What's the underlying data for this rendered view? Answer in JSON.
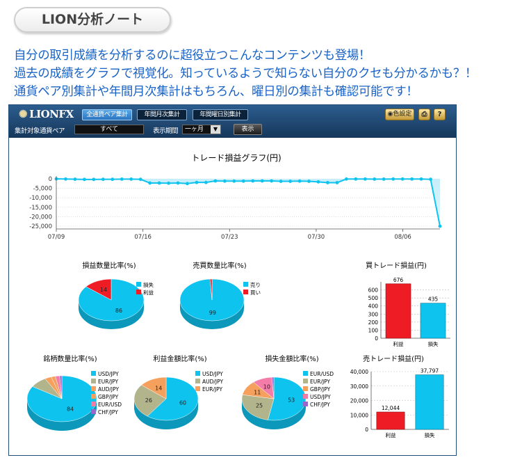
{
  "header_tab": {
    "title": "LION分析ノート"
  },
  "intro": [
    "自分の取引成績を分析するのに超役立つこんなコンテンツも登場！",
    "過去の成績をグラフで視覚化。知っているようで知らない自分のクセも分かるかも？！",
    "通貨ペア別集計や年間月次集計はもちろん、曜日別の集計も確認可能です！"
  ],
  "app": {
    "logo": "LIONFX",
    "tabs": [
      "全通貨ペア集計",
      "年間月次集計",
      "年間曜日別集計"
    ],
    "pair_label": "集計対象通貨ペア",
    "pair_value": "すべて",
    "period_label": "表示期間",
    "period_value": "一ヶ月",
    "show_button": "表示",
    "color_button": "色設定",
    "print_icon": "print-icon",
    "help_icon": "?",
    "colors": {
      "cyan": "#0fc3ef",
      "red": "#ee1c24",
      "olive": "#b2b48c",
      "orange": "#f5a05c",
      "pink": "#f47ca9",
      "purple": "#9966cc"
    }
  },
  "chart_data": [
    {
      "type": "area",
      "title": "トレード損益グラフ(円)",
      "ylim": [
        -25000,
        0
      ],
      "yticks": [
        0,
        -5000,
        -10000,
        -15000,
        -20000,
        -25000
      ],
      "ytick_labels": [
        "0",
        "-5,000",
        "-10,000",
        "-15,000",
        "-20,000",
        "-25,000"
      ],
      "xtick_labels": [
        "07/09",
        "07/16",
        "07/23",
        "07/30",
        "08/06"
      ],
      "x_day_offsets": [
        0,
        1,
        2,
        3,
        4,
        5,
        6,
        7,
        8,
        9,
        10,
        11,
        12,
        13,
        14,
        15,
        16,
        17,
        18,
        19,
        20,
        21,
        22,
        23,
        24,
        25,
        26,
        27,
        28,
        29,
        30,
        31,
        32,
        33,
        34,
        35,
        36,
        37,
        38,
        39,
        40,
        41
      ],
      "values": [
        0,
        -100,
        -200,
        -300,
        -300,
        -250,
        -250,
        -150,
        -150,
        -250,
        -2200,
        -2200,
        -2300,
        -2200,
        -2500,
        -1900,
        -1900,
        -1100,
        -1200,
        -1200,
        -1200,
        -1100,
        -1100,
        -1100,
        -1300,
        -1300,
        -1200,
        -1300,
        -1600,
        -2000,
        -2000,
        -100,
        -100,
        -100,
        -150,
        -150,
        -100,
        -100,
        -100,
        -100,
        -250,
        -25000
      ],
      "grid": true
    },
    {
      "type": "pie",
      "title": "損益数量比率(%)",
      "labels": [
        "損失",
        "利益"
      ],
      "values": [
        86,
        14
      ]
    },
    {
      "type": "pie",
      "title": "売買数量比率(%)",
      "labels": [
        "売り",
        "買い"
      ],
      "values": [
        99,
        1
      ]
    },
    {
      "type": "bar",
      "title": "買トレード損益(円)",
      "categories": [
        "利益",
        "損失"
      ],
      "values": [
        676,
        435
      ],
      "ylim": [
        0,
        700
      ],
      "yticks": [
        0,
        100,
        200,
        300,
        400,
        500,
        600
      ],
      "value_labels": [
        "676",
        "435"
      ]
    },
    {
      "type": "pie",
      "title": "銘柄数量比率(%)",
      "labels": [
        "USD/JPY",
        "EUR/JPY",
        "AUD/JPY",
        "GBP/JPY",
        "EUR/USD",
        "CHF/JPY"
      ],
      "values": [
        84,
        8,
        3,
        2,
        2,
        1
      ]
    },
    {
      "type": "pie",
      "title": "利益金額比率(%)",
      "labels": [
        "USD/JPY",
        "AUD/JPY",
        "EUR/JPY"
      ],
      "values": [
        60,
        26,
        14
      ]
    },
    {
      "type": "pie",
      "title": "損失金額比率(%)",
      "labels": [
        "EUR/USD",
        "EUR/JPY",
        "GBP/JPY",
        "USD/JPY",
        "CHF/JPY"
      ],
      "values": [
        53,
        25,
        11,
        10,
        1
      ]
    },
    {
      "type": "bar",
      "title": "売トレード損益(円)",
      "categories": [
        "利益",
        "損失"
      ],
      "values": [
        12044,
        37797
      ],
      "ylim": [
        0,
        40000
      ],
      "yticks": [
        0,
        10000,
        20000,
        30000,
        40000
      ],
      "ytick_labels": [
        "0",
        "10,000",
        "20,000",
        "30,000",
        "40,000"
      ],
      "value_labels": [
        "12,044",
        "37,797"
      ]
    }
  ]
}
